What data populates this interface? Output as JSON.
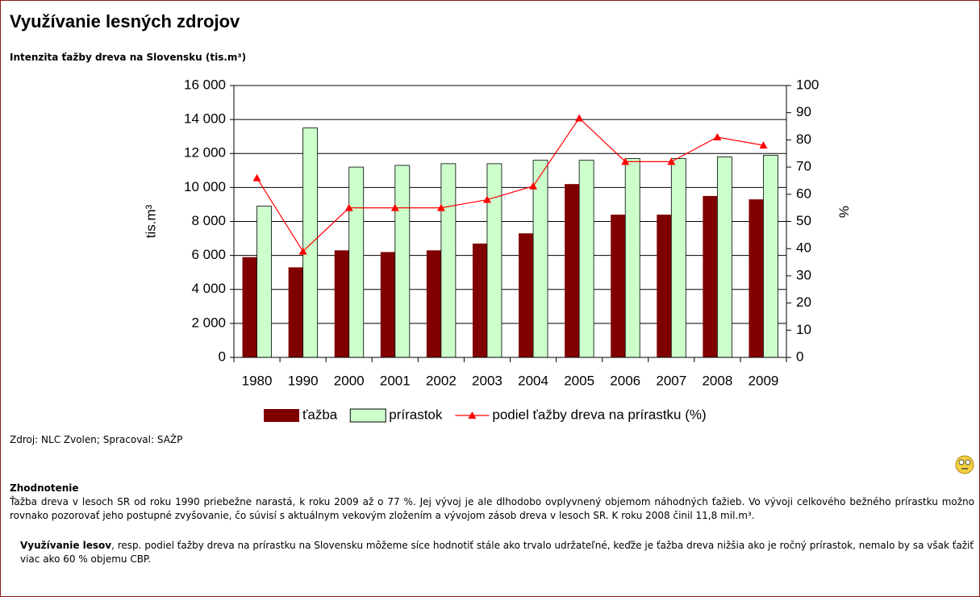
{
  "header": {
    "title": "Využívanie lesných zdrojov"
  },
  "chart_data": {
    "type": "bar",
    "title": "Intenzita ťažby dreva na Slovensku (tis.m³)",
    "y_label": "tis.m³",
    "y2_label": "%",
    "categories": [
      "1980",
      "1990",
      "2000",
      "2001",
      "2002",
      "2003",
      "2004",
      "2005",
      "2006",
      "2007",
      "2008",
      "2009"
    ],
    "series": [
      {
        "name": "ťažba",
        "type": "bar",
        "color": "#800000",
        "values": [
          5900,
          5300,
          6300,
          6200,
          6300,
          6700,
          7300,
          10200,
          8400,
          8400,
          9500,
          9300
        ]
      },
      {
        "name": "prírastok",
        "type": "bar",
        "color": "#ccffcc",
        "values": [
          8900,
          13500,
          11200,
          11300,
          11400,
          11400,
          11600,
          11600,
          11700,
          11700,
          11800,
          11900
        ]
      },
      {
        "name": "podiel ťažby dreva na prírastku (%)",
        "type": "line",
        "axis": "y2",
        "color": "#ff0000",
        "values": [
          66,
          39,
          55,
          55,
          55,
          58,
          63,
          88,
          72,
          72,
          81,
          78
        ]
      }
    ],
    "ylim": [
      0,
      16000
    ],
    "yticks": [
      0,
      {
        "value": 2000,
        "label": "2 000"
      },
      {
        "value": 4000,
        "label": "4 000"
      },
      {
        "value": 6000,
        "label": "6 000"
      },
      {
        "value": 8000,
        "label": "8 000"
      },
      {
        "value": 10000,
        "label": "10 000"
      },
      {
        "value": 12000,
        "label": "12 000"
      },
      {
        "value": 14000,
        "label": "14 000"
      },
      {
        "value": 16000,
        "label": "16 000"
      }
    ],
    "y2lim": [
      0,
      100
    ],
    "y2ticks": [
      0,
      10,
      20,
      30,
      40,
      50,
      60,
      70,
      80,
      90,
      100
    ],
    "grid": true,
    "legend": "bottom"
  },
  "source": "Zdroj: NLC Zvolen; Spracoval: SAŽP",
  "evaluation": {
    "heading": "Zhodnotenie",
    "paragraph1": "Ťažba dreva v lesoch SR od roku 1990 priebežne narastá, k roku 2009 až o 77 %. Jej vývoj je ale dlhodobo ovplyvnený objemom náhodných ťažieb. Vo vývoji celkového bežného prírastku možno rovnako pozorovať jeho postupné zvyšovanie, čo súvisí s aktuálnym vekovým zložením a vývojom zásob dreva v lesoch SR. K roku 2008 činil 11,8 mil.m³.",
    "paragraph2_bold": "Využívanie lesov",
    "paragraph2": ", resp. podiel ťažby dreva na prírastku na Slovensku môžeme síce hodnotiť stále ako trvalo udržateľné, keďže je ťažba dreva nižšia ako je ročný prírastok, nemalo by sa však ťažiť viac ako 60 % objemu CBP."
  }
}
